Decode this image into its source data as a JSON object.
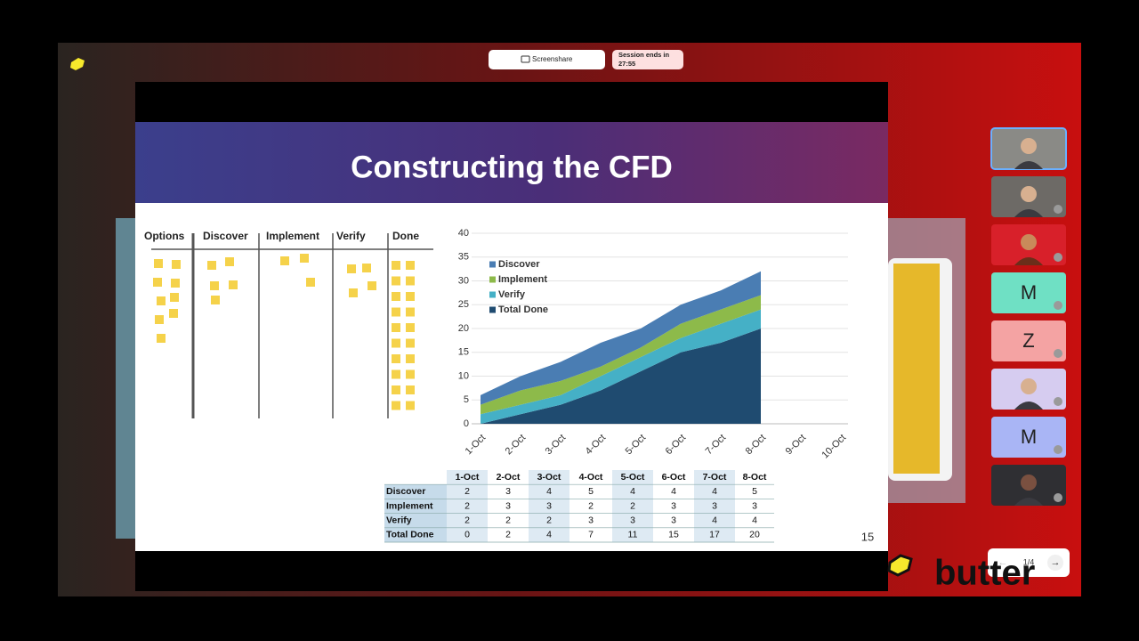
{
  "toolbar": {
    "screenshare": "Screenshare",
    "session": "Session ends in",
    "timer": "27:55"
  },
  "slide": {
    "title": "Constructing the CFD",
    "page_number": 15,
    "board": {
      "columns": [
        "Options",
        "Discover",
        "Implement",
        "Verify",
        "Done"
      ]
    },
    "chart": {
      "type": "area",
      "stacked": true,
      "categories": [
        "1-Oct",
        "2-Oct",
        "3-Oct",
        "4-Oct",
        "5-Oct",
        "6-Oct",
        "7-Oct",
        "8-Oct",
        "9-Oct",
        "10-Oct"
      ],
      "series": [
        {
          "name": "Discover",
          "color": "#4a7db3",
          "values": [
            2,
            3,
            4,
            5,
            4,
            4,
            4,
            5,
            null,
            null
          ]
        },
        {
          "name": "Implement",
          "color": "#8dba4a",
          "values": [
            2,
            3,
            3,
            2,
            2,
            3,
            3,
            3,
            null,
            null
          ]
        },
        {
          "name": "Verify",
          "color": "#45b0c6",
          "values": [
            2,
            2,
            2,
            3,
            3,
            3,
            4,
            4,
            null,
            null
          ]
        },
        {
          "name": "Total Done",
          "color": "#1f4b70",
          "values": [
            0,
            2,
            4,
            7,
            11,
            15,
            17,
            20,
            null,
            null
          ]
        }
      ],
      "ylim": [
        0,
        40
      ],
      "yticks": [
        0,
        5,
        10,
        15,
        20,
        25,
        30,
        35,
        40
      ],
      "grid": true,
      "legend": "upper left"
    }
  },
  "participants": [
    "M",
    "Z",
    "M"
  ],
  "pager": "1/4",
  "brand": "butter"
}
